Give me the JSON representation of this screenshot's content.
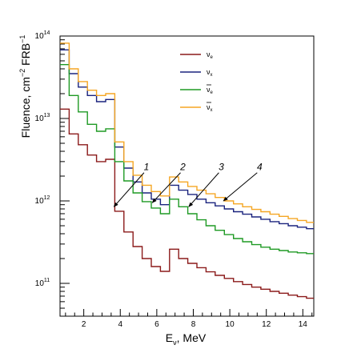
{
  "chart_data": {
    "type": "line",
    "step": true,
    "xlabel": "E",
    "xlabel_sub": "ν",
    "xlabel_unit": ", MeV",
    "ylabel": "Fluence, cm",
    "ylabel_sup1": "−2",
    "ylabel_mid": " FRB",
    "ylabel_sup2": "−1",
    "xlim": [
      0.7,
      14.6
    ],
    "ylim": [
      40000000000.0,
      100000000000000.0
    ],
    "yscale": "log",
    "x_ticks": [
      2,
      4,
      6,
      8,
      10,
      12,
      14
    ],
    "x_tick_labels": [
      "2",
      "4",
      "6",
      "8",
      "10",
      "12",
      "14"
    ],
    "y_ticks": [
      100000000000.0,
      1000000000000.0,
      10000000000000.0,
      100000000000000.0
    ],
    "y_tick_base": "10",
    "y_tick_exps": [
      "11",
      "12",
      "13",
      "14"
    ],
    "legend_position": "top-right",
    "edges": [
      0.7,
      1.2,
      1.7,
      2.2,
      2.7,
      3.2,
      3.7,
      4.2,
      4.7,
      5.2,
      5.7,
      6.2,
      6.7,
      7.2,
      7.7,
      8.2,
      8.7,
      9.2,
      9.7,
      10.2,
      10.7,
      11.2,
      11.7,
      12.2,
      12.7,
      13.2,
      13.7,
      14.2,
      14.6
    ],
    "series": [
      {
        "name": "ν",
        "sub": "e",
        "bar": false,
        "color": "#8b1a1a",
        "values": [
          13000000000000.0,
          6500000000000.0,
          4800000000000.0,
          3600000000000.0,
          3000000000000.0,
          3200000000000.0,
          750000000000.0,
          420000000000.0,
          280000000000.0,
          200000000000.0,
          160000000000.0,
          140000000000.0,
          260000000000.0,
          200000000000.0,
          175000000000.0,
          155000000000.0,
          138000000000.0,
          125000000000.0,
          115000000000.0,
          105000000000.0,
          97000000000.0,
          90000000000.0,
          85000000000.0,
          80000000000.0,
          76000000000.0,
          72000000000.0,
          69000000000.0,
          66000000000.0
        ]
      },
      {
        "name": "ν",
        "sub": "x",
        "bar": false,
        "color": "#1a237e",
        "values": [
          68000000000000.0,
          35000000000000.0,
          24000000000000.0,
          19000000000000.0,
          16000000000000.0,
          17000000000000.0,
          4500000000000.0,
          2500000000000.0,
          1700000000000.0,
          1250000000000.0,
          1050000000000.0,
          900000000000.0,
          1550000000000.0,
          1350000000000.0,
          1200000000000.0,
          1050000000000.0,
          950000000000.0,
          870000000000.0,
          800000000000.0,
          740000000000.0,
          690000000000.0,
          640000000000.0,
          600000000000.0,
          560000000000.0,
          530000000000.0,
          500000000000.0,
          480000000000.0,
          460000000000.0
        ]
      },
      {
        "name": "ν",
        "sub": "e",
        "bar": true,
        "color": "#1f9a24",
        "values": [
          45000000000000.0,
          19000000000000.0,
          12000000000000.0,
          8500000000000.0,
          7000000000000.0,
          7500000000000.0,
          3000000000000.0,
          1750000000000.0,
          1250000000000.0,
          980000000000.0,
          820000000000.0,
          700000000000.0,
          1050000000000.0,
          850000000000.0,
          700000000000.0,
          590000000000.0,
          500000000000.0,
          440000000000.0,
          390000000000.0,
          350000000000.0,
          320000000000.0,
          295000000000.0,
          275000000000.0,
          260000000000.0,
          250000000000.0,
          240000000000.0,
          235000000000.0,
          230000000000.0
        ]
      },
      {
        "name": "ν",
        "sub": "x",
        "bar": true,
        "color": "#f5a623",
        "values": [
          82000000000000.0,
          40000000000000.0,
          28000000000000.0,
          22000000000000.0,
          19000000000000.0,
          20000000000000.0,
          5200000000000.0,
          3000000000000.0,
          2050000000000.0,
          1550000000000.0,
          1300000000000.0,
          1150000000000.0,
          1950000000000.0,
          1700000000000.0,
          1500000000000.0,
          1350000000000.0,
          1220000000000.0,
          1100000000000.0,
          1000000000000.0,
          920000000000.0,
          850000000000.0,
          790000000000.0,
          740000000000.0,
          690000000000.0,
          650000000000.0,
          610000000000.0,
          580000000000.0,
          550000000000.0
        ]
      }
    ],
    "annotations": [
      {
        "label": "1",
        "from": [
          5.3,
          2200000000000.0
        ],
        "to": [
          3.65,
          850000000000.0
        ]
      },
      {
        "label": "2",
        "from": [
          7.3,
          2200000000000.0
        ],
        "to": [
          5.75,
          950000000000.0
        ]
      },
      {
        "label": "3",
        "from": [
          9.4,
          2200000000000.0
        ],
        "to": [
          7.75,
          850000000000.0
        ]
      },
      {
        "label": "4",
        "from": [
          11.5,
          2200000000000.0
        ],
        "to": [
          9.65,
          1000000000000.0
        ]
      }
    ]
  }
}
